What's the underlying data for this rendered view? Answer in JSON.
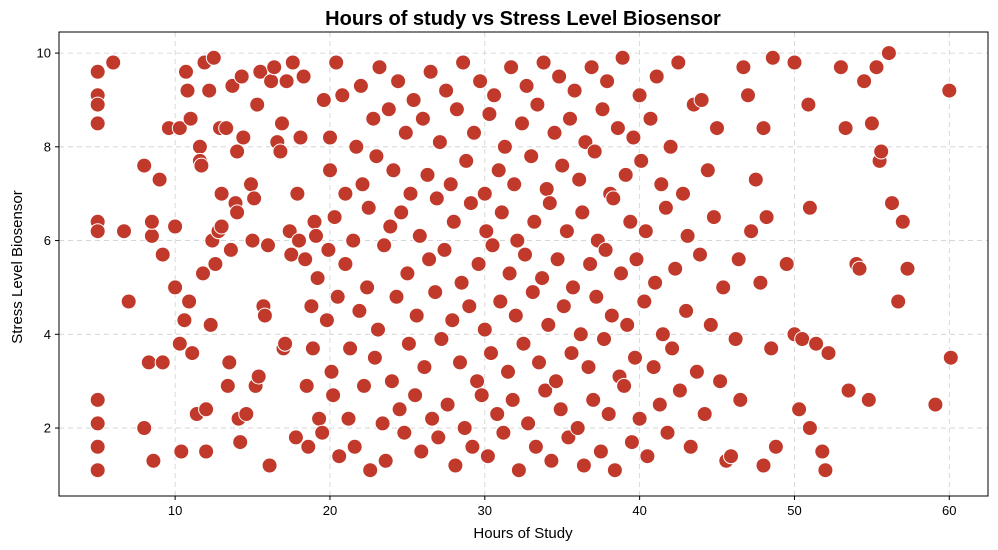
{
  "colors": {
    "marker": "#c0392b",
    "marker_edge": "#ffffff",
    "grid": "#d0d0d0",
    "axis": "#000000"
  },
  "chart_data": {
    "type": "scatter",
    "title": "Hours of study vs Stress Level Biosensor",
    "xlabel": "Hours of Study",
    "ylabel": "Stress Level Biosensor",
    "xlim": [
      2.5,
      62.5
    ],
    "ylim": [
      0.55,
      10.45
    ],
    "xticks": [
      10,
      20,
      30,
      40,
      50,
      60
    ],
    "yticks": [
      2,
      4,
      6,
      8,
      10
    ],
    "xtick_labels": [
      "10",
      "20",
      "30",
      "40",
      "50",
      "60"
    ],
    "ytick_labels": [
      "2",
      "4",
      "6",
      "8",
      "10"
    ],
    "grid": true,
    "points": [
      [
        5,
        9.6
      ],
      [
        5,
        9.1
      ],
      [
        5,
        8.9
      ],
      [
        5,
        8.5
      ],
      [
        6,
        9.8
      ],
      [
        5,
        6.4
      ],
      [
        5,
        6.2
      ],
      [
        5,
        2.6
      ],
      [
        5,
        2.1
      ],
      [
        5,
        1.6
      ],
      [
        5,
        1.1
      ],
      [
        6.7,
        6.2
      ],
      [
        7,
        4.7
      ],
      [
        8,
        7.6
      ],
      [
        8,
        2.0
      ],
      [
        8.3,
        3.4
      ],
      [
        8.5,
        6.1
      ],
      [
        8.5,
        6.4
      ],
      [
        8.6,
        1.3
      ],
      [
        9,
        7.3
      ],
      [
        9.2,
        5.7
      ],
      [
        9.2,
        3.4
      ],
      [
        9.6,
        8.4
      ],
      [
        10,
        6.3
      ],
      [
        10,
        5.0
      ],
      [
        10.3,
        8.4
      ],
      [
        10.3,
        3.8
      ],
      [
        10.4,
        1.5
      ],
      [
        10.6,
        4.3
      ],
      [
        10.7,
        9.6
      ],
      [
        10.8,
        9.2
      ],
      [
        10.9,
        4.7
      ],
      [
        11,
        8.6
      ],
      [
        11.1,
        3.6
      ],
      [
        11.4,
        2.3
      ],
      [
        11.6,
        8.0
      ],
      [
        11.6,
        7.7
      ],
      [
        11.7,
        7.6
      ],
      [
        11.8,
        5.3
      ],
      [
        11.9,
        9.8
      ],
      [
        12,
        2.4
      ],
      [
        12,
        1.5
      ],
      [
        12.2,
        9.2
      ],
      [
        12.3,
        4.2
      ],
      [
        12.4,
        6.0
      ],
      [
        12.5,
        9.9
      ],
      [
        12.6,
        5.5
      ],
      [
        12.8,
        6.2
      ],
      [
        12.9,
        8.4
      ],
      [
        13,
        7.0
      ],
      [
        13,
        6.3
      ],
      [
        13.3,
        8.4
      ],
      [
        13.4,
        2.9
      ],
      [
        13.5,
        3.4
      ],
      [
        13.6,
        5.8
      ],
      [
        13.7,
        9.3
      ],
      [
        13.9,
        6.8
      ],
      [
        14,
        7.9
      ],
      [
        14,
        6.6
      ],
      [
        14.1,
        2.2
      ],
      [
        14.2,
        1.7
      ],
      [
        14.3,
        9.5
      ],
      [
        14.4,
        8.2
      ],
      [
        14.6,
        2.3
      ],
      [
        14.9,
        7.2
      ],
      [
        15,
        6.0
      ],
      [
        15.1,
        6.9
      ],
      [
        15.2,
        2.9
      ],
      [
        15.3,
        8.9
      ],
      [
        15.4,
        3.1
      ],
      [
        15.5,
        9.6
      ],
      [
        15.7,
        4.6
      ],
      [
        15.8,
        4.4
      ],
      [
        16,
        5.9
      ],
      [
        16.1,
        1.2
      ],
      [
        16.2,
        9.4
      ],
      [
        16.4,
        9.7
      ],
      [
        16.6,
        8.1
      ],
      [
        16.8,
        7.9
      ],
      [
        16.9,
        8.5
      ],
      [
        17,
        3.7
      ],
      [
        17.1,
        3.8
      ],
      [
        17.2,
        9.4
      ],
      [
        17.4,
        6.2
      ],
      [
        17.5,
        5.7
      ],
      [
        17.6,
        9.8
      ],
      [
        17.8,
        1.8
      ],
      [
        17.9,
        7.0
      ],
      [
        18,
        6.0
      ],
      [
        18.1,
        8.2
      ],
      [
        18.3,
        9.5
      ],
      [
        18.4,
        5.6
      ],
      [
        18.5,
        2.9
      ],
      [
        18.6,
        1.6
      ],
      [
        18.8,
        4.6
      ],
      [
        18.9,
        3.7
      ],
      [
        19,
        6.4
      ],
      [
        19.1,
        6.1
      ],
      [
        19.2,
        5.2
      ],
      [
        19.3,
        2.2
      ],
      [
        19.5,
        1.9
      ],
      [
        19.6,
        9.0
      ],
      [
        19.8,
        4.3
      ],
      [
        19.9,
        5.8
      ],
      [
        20,
        8.2
      ],
      [
        20,
        7.5
      ],
      [
        20.1,
        3.2
      ],
      [
        20.2,
        2.7
      ],
      [
        20.3,
        6.5
      ],
      [
        20.4,
        9.8
      ],
      [
        20.5,
        4.8
      ],
      [
        20.6,
        1.4
      ],
      [
        20.8,
        9.1
      ],
      [
        21,
        7.0
      ],
      [
        21,
        5.5
      ],
      [
        21.2,
        2.2
      ],
      [
        21.3,
        3.7
      ],
      [
        21.5,
        6.0
      ],
      [
        21.6,
        1.6
      ],
      [
        21.7,
        8.0
      ],
      [
        21.9,
        4.5
      ],
      [
        22,
        9.3
      ],
      [
        22.1,
        7.2
      ],
      [
        22.2,
        2.9
      ],
      [
        22.4,
        5.0
      ],
      [
        22.5,
        6.7
      ],
      [
        22.6,
        1.1
      ],
      [
        22.8,
        8.6
      ],
      [
        22.9,
        3.5
      ],
      [
        23,
        7.8
      ],
      [
        23.1,
        4.1
      ],
      [
        23.2,
        9.7
      ],
      [
        23.4,
        2.1
      ],
      [
        23.5,
        5.9
      ],
      [
        23.6,
        1.3
      ],
      [
        23.8,
        8.8
      ],
      [
        23.9,
        6.3
      ],
      [
        24,
        3.0
      ],
      [
        24.1,
        7.5
      ],
      [
        24.3,
        4.8
      ],
      [
        24.4,
        9.4
      ],
      [
        24.5,
        2.4
      ],
      [
        24.6,
        6.6
      ],
      [
        24.8,
        1.9
      ],
      [
        24.9,
        8.3
      ],
      [
        25,
        5.3
      ],
      [
        25.1,
        3.8
      ],
      [
        25.2,
        7.0
      ],
      [
        25.4,
        9.0
      ],
      [
        25.5,
        2.7
      ],
      [
        25.6,
        4.4
      ],
      [
        25.8,
        6.1
      ],
      [
        25.9,
        1.5
      ],
      [
        26,
        8.6
      ],
      [
        26.1,
        3.3
      ],
      [
        26.3,
        7.4
      ],
      [
        26.4,
        5.6
      ],
      [
        26.5,
        9.6
      ],
      [
        26.6,
        2.2
      ],
      [
        26.8,
        4.9
      ],
      [
        26.9,
        6.9
      ],
      [
        27,
        1.8
      ],
      [
        27.1,
        8.1
      ],
      [
        27.2,
        3.9
      ],
      [
        27.4,
        5.8
      ],
      [
        27.5,
        9.2
      ],
      [
        27.6,
        2.5
      ],
      [
        27.8,
        7.2
      ],
      [
        27.9,
        4.3
      ],
      [
        28,
        6.4
      ],
      [
        28.1,
        1.2
      ],
      [
        28.2,
        8.8
      ],
      [
        28.4,
        3.4
      ],
      [
        28.5,
        5.1
      ],
      [
        28.6,
        9.8
      ],
      [
        28.7,
        2.0
      ],
      [
        28.8,
        7.7
      ],
      [
        29,
        4.6
      ],
      [
        29.1,
        6.8
      ],
      [
        29.2,
        1.6
      ],
      [
        29.3,
        8.3
      ],
      [
        29.5,
        3.0
      ],
      [
        29.6,
        5.5
      ],
      [
        29.7,
        9.4
      ],
      [
        29.8,
        2.7
      ],
      [
        30,
        7.0
      ],
      [
        30,
        4.1
      ],
      [
        30.1,
        6.2
      ],
      [
        30.2,
        1.4
      ],
      [
        30.3,
        8.7
      ],
      [
        30.4,
        3.6
      ],
      [
        30.5,
        5.9
      ],
      [
        30.6,
        9.1
      ],
      [
        30.8,
        2.3
      ],
      [
        30.9,
        7.5
      ],
      [
        31,
        4.7
      ],
      [
        31.1,
        6.6
      ],
      [
        31.2,
        1.9
      ],
      [
        31.3,
        8.0
      ],
      [
        31.5,
        3.2
      ],
      [
        31.6,
        5.3
      ],
      [
        31.7,
        9.7
      ],
      [
        31.8,
        2.6
      ],
      [
        31.9,
        7.2
      ],
      [
        32,
        4.4
      ],
      [
        32.1,
        6.0
      ],
      [
        32.2,
        1.1
      ],
      [
        32.4,
        8.5
      ],
      [
        32.5,
        3.8
      ],
      [
        32.6,
        5.7
      ],
      [
        32.7,
        9.3
      ],
      [
        32.8,
        2.1
      ],
      [
        33,
        7.8
      ],
      [
        33.1,
        4.9
      ],
      [
        33.2,
        6.4
      ],
      [
        33.3,
        1.6
      ],
      [
        33.4,
        8.9
      ],
      [
        33.5,
        3.4
      ],
      [
        33.7,
        5.2
      ],
      [
        33.8,
        9.8
      ],
      [
        33.9,
        2.8
      ],
      [
        34,
        7.1
      ],
      [
        34.1,
        4.2
      ],
      [
        34.2,
        6.8
      ],
      [
        34.3,
        1.3
      ],
      [
        34.5,
        8.3
      ],
      [
        34.6,
        3.0
      ],
      [
        34.7,
        5.6
      ],
      [
        34.8,
        9.5
      ],
      [
        34.9,
        2.4
      ],
      [
        35,
        7.6
      ],
      [
        35.1,
        4.6
      ],
      [
        35.3,
        6.2
      ],
      [
        35.4,
        1.8
      ],
      [
        35.5,
        8.6
      ],
      [
        35.6,
        3.6
      ],
      [
        35.7,
        5.0
      ],
      [
        35.8,
        9.2
      ],
      [
        36,
        2.0
      ],
      [
        36.1,
        7.3
      ],
      [
        36.2,
        4.0
      ],
      [
        36.3,
        6.6
      ],
      [
        36.4,
        1.2
      ],
      [
        36.5,
        8.1
      ],
      [
        36.7,
        3.3
      ],
      [
        36.8,
        5.5
      ],
      [
        36.9,
        9.7
      ],
      [
        37,
        2.6
      ],
      [
        37.1,
        7.9
      ],
      [
        37.2,
        4.8
      ],
      [
        37.3,
        6.0
      ],
      [
        37.5,
        1.5
      ],
      [
        37.6,
        8.8
      ],
      [
        37.7,
        3.9
      ],
      [
        37.8,
        5.8
      ],
      [
        37.9,
        9.4
      ],
      [
        38,
        2.3
      ],
      [
        38.1,
        7.0
      ],
      [
        38.2,
        4.4
      ],
      [
        38.3,
        6.9
      ],
      [
        38.4,
        1.1
      ],
      [
        38.6,
        8.4
      ],
      [
        38.7,
        3.1
      ],
      [
        38.8,
        5.3
      ],
      [
        38.9,
        9.9
      ],
      [
        39,
        2.9
      ],
      [
        39.1,
        7.4
      ],
      [
        39.2,
        4.2
      ],
      [
        39.4,
        6.4
      ],
      [
        39.5,
        1.7
      ],
      [
        39.6,
        8.2
      ],
      [
        39.7,
        3.5
      ],
      [
        39.8,
        5.6
      ],
      [
        40,
        9.1
      ],
      [
        40,
        2.2
      ],
      [
        40.1,
        7.7
      ],
      [
        40.3,
        4.7
      ],
      [
        40.4,
        6.2
      ],
      [
        40.5,
        1.4
      ],
      [
        40.7,
        8.6
      ],
      [
        40.9,
        3.3
      ],
      [
        41,
        5.1
      ],
      [
        41.1,
        9.5
      ],
      [
        41.3,
        2.5
      ],
      [
        41.4,
        7.2
      ],
      [
        41.5,
        4.0
      ],
      [
        41.7,
        6.7
      ],
      [
        41.8,
        1.9
      ],
      [
        42,
        8.0
      ],
      [
        42.1,
        3.7
      ],
      [
        42.3,
        5.4
      ],
      [
        42.5,
        9.8
      ],
      [
        42.6,
        2.8
      ],
      [
        42.8,
        7.0
      ],
      [
        43,
        4.5
      ],
      [
        43.1,
        6.1
      ],
      [
        43.3,
        1.6
      ],
      [
        43.5,
        8.9
      ],
      [
        43.7,
        3.2
      ],
      [
        43.9,
        5.7
      ],
      [
        44,
        9.0
      ],
      [
        44.2,
        2.3
      ],
      [
        44.4,
        7.5
      ],
      [
        44.6,
        4.2
      ],
      [
        44.8,
        6.5
      ],
      [
        45,
        8.4
      ],
      [
        45.2,
        3.0
      ],
      [
        45.4,
        5.0
      ],
      [
        45.6,
        1.3
      ],
      [
        45.9,
        1.4
      ],
      [
        46.2,
        3.9
      ],
      [
        46.4,
        5.6
      ],
      [
        46.5,
        2.6
      ],
      [
        46.7,
        9.7
      ],
      [
        47,
        9.1
      ],
      [
        47.2,
        6.2
      ],
      [
        47.5,
        7.3
      ],
      [
        47.8,
        5.1
      ],
      [
        48,
        8.4
      ],
      [
        48,
        1.2
      ],
      [
        48.2,
        6.5
      ],
      [
        48.5,
        3.7
      ],
      [
        48.6,
        9.9
      ],
      [
        48.8,
        1.6
      ],
      [
        49.5,
        5.5
      ],
      [
        50,
        9.8
      ],
      [
        50,
        4.0
      ],
      [
        50.3,
        2.4
      ],
      [
        50.5,
        3.9
      ],
      [
        50.9,
        8.9
      ],
      [
        51,
        2.0
      ],
      [
        51,
        6.7
      ],
      [
        51.4,
        3.8
      ],
      [
        51.8,
        1.5
      ],
      [
        52,
        1.1
      ],
      [
        52.2,
        3.6
      ],
      [
        53,
        9.7
      ],
      [
        53.3,
        8.4
      ],
      [
        53.5,
        2.8
      ],
      [
        54,
        5.5
      ],
      [
        54.2,
        5.4
      ],
      [
        54.5,
        9.4
      ],
      [
        54.8,
        2.6
      ],
      [
        55,
        8.5
      ],
      [
        55.3,
        9.7
      ],
      [
        55.5,
        7.7
      ],
      [
        55.6,
        7.9
      ],
      [
        56.1,
        10.0
      ],
      [
        56.3,
        6.8
      ],
      [
        56.7,
        4.7
      ],
      [
        57,
        6.4
      ],
      [
        57.3,
        5.4
      ],
      [
        59.1,
        2.5
      ],
      [
        60,
        9.2
      ],
      [
        60.1,
        3.5
      ]
    ]
  }
}
